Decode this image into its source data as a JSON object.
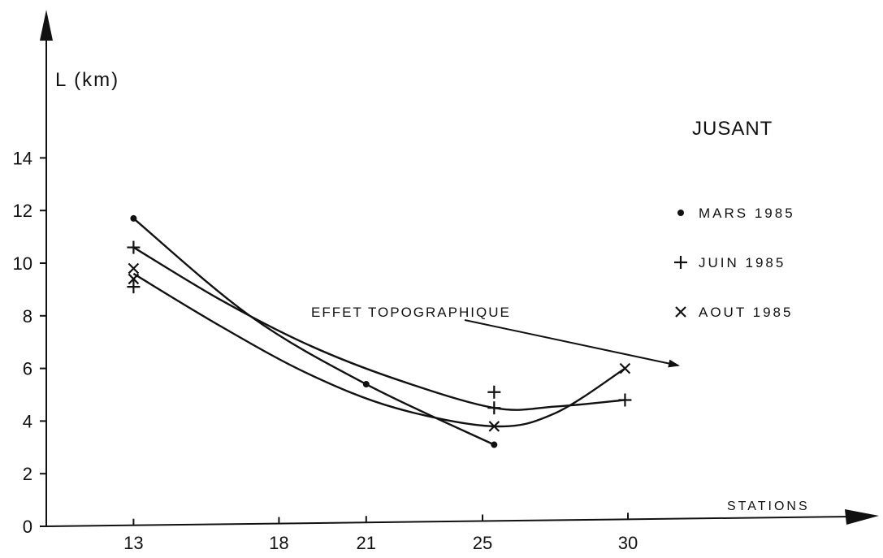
{
  "chart_data": {
    "type": "line",
    "title": "JUSANT",
    "xlabel": "STATIONS",
    "ylabel": "L (km)",
    "xlim": [
      10,
      39
    ],
    "ylim": [
      0,
      16
    ],
    "x_ticks": [
      13,
      18,
      21,
      25,
      30
    ],
    "y_ticks": [
      0,
      2,
      4,
      6,
      8,
      10,
      12,
      14
    ],
    "grid": false,
    "legend_position": "right",
    "series": [
      {
        "name": "MARS 1985",
        "marker": "dot",
        "points": [
          [
            13,
            11.7
          ],
          [
            21,
            5.4
          ],
          [
            25.4,
            3.1
          ]
        ],
        "curve": [
          [
            13,
            11.7
          ],
          [
            17,
            8.0
          ],
          [
            21,
            5.4
          ],
          [
            25.4,
            3.1
          ]
        ]
      },
      {
        "name": "JUIN 1985",
        "marker": "plus",
        "points": [
          [
            13,
            10.6
          ],
          [
            13,
            9.1
          ],
          [
            25.4,
            5.1
          ],
          [
            25.4,
            4.5
          ],
          [
            29.9,
            4.8
          ]
        ],
        "curve": [
          [
            13,
            10.6
          ],
          [
            16,
            8.6
          ],
          [
            19,
            6.9
          ],
          [
            22,
            5.6
          ],
          [
            25.4,
            4.5
          ],
          [
            27.5,
            4.55
          ],
          [
            29.9,
            4.8
          ]
        ]
      },
      {
        "name": "AOUT 1985",
        "marker": "cross",
        "points": [
          [
            13,
            9.8
          ],
          [
            13,
            9.4
          ],
          [
            25.4,
            3.8
          ],
          [
            29.9,
            6.0
          ]
        ],
        "curve": [
          [
            13,
            9.6
          ],
          [
            16,
            7.6
          ],
          [
            19,
            5.8
          ],
          [
            22,
            4.5
          ],
          [
            25.4,
            3.8
          ],
          [
            27.5,
            4.3
          ],
          [
            29.9,
            6.0
          ]
        ]
      }
    ],
    "annotations": [
      {
        "text": "EFFET TOPOGRAPHIQUE",
        "target": [
          29.5,
          5.9
        ]
      }
    ]
  }
}
